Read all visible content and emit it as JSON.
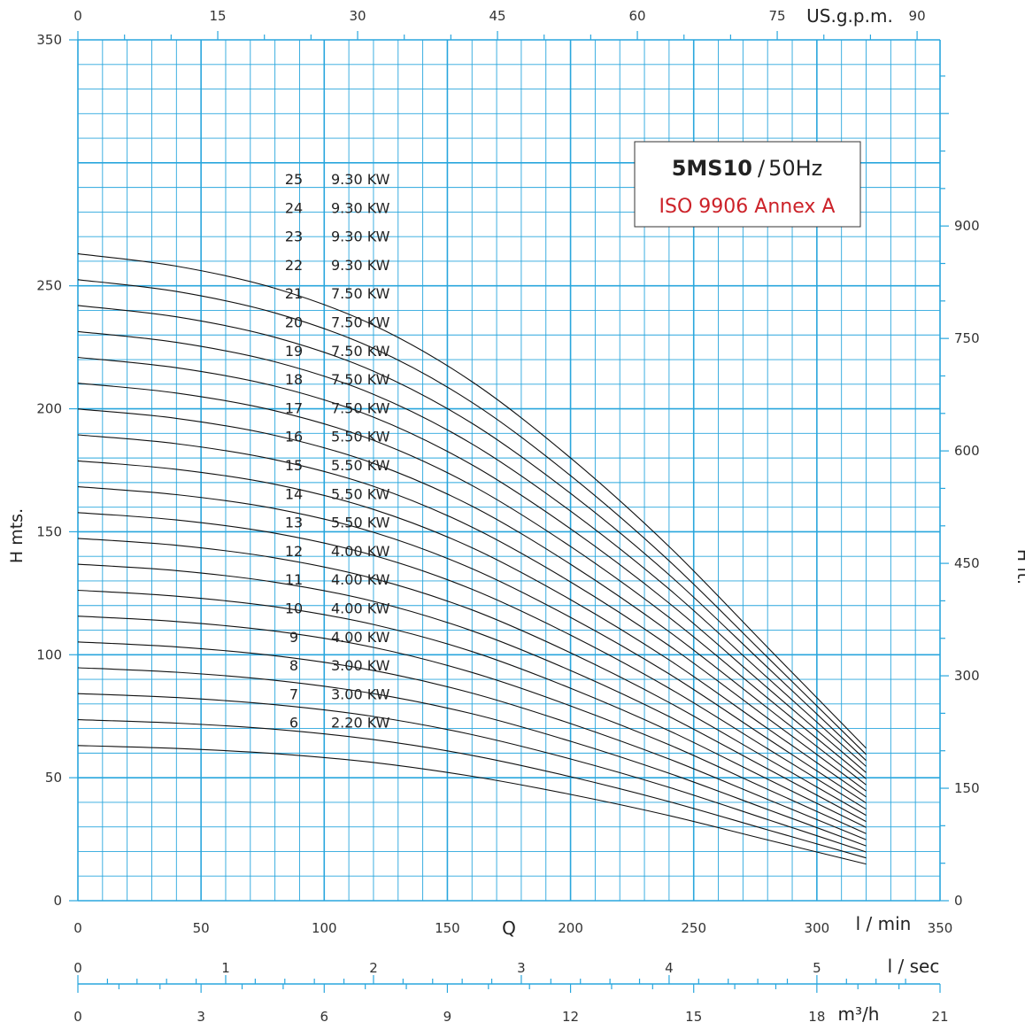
{
  "chart_data": {
    "type": "line",
    "model": "5MS10",
    "frequency": "50Hz",
    "model_separator": "/",
    "standard": "ISO 9906 Annex A",
    "ylabel_left": "H mts.",
    "ylabel_right": "H ft.",
    "xlabel": "Q",
    "axes": {
      "lpm": {
        "unit": "l / min",
        "range": [
          0,
          350
        ],
        "ticks": [
          "0",
          "50",
          "100",
          "150",
          "200",
          "250",
          "300",
          "350"
        ]
      },
      "gpm": {
        "unit": "US.g.p.m.",
        "range": [
          0,
          92.46
        ],
        "ticks": [
          "0",
          "15",
          "30",
          "45",
          "60",
          "75",
          "90"
        ]
      },
      "lps": {
        "unit": "l / sec",
        "range": [
          0,
          5.833
        ],
        "ticks": [
          "0",
          "1",
          "2",
          "3",
          "4",
          "5"
        ]
      },
      "m3h": {
        "unit": "m³/h",
        "range": [
          0,
          21
        ],
        "ticks": [
          "0",
          "3",
          "6",
          "9",
          "12",
          "15",
          "18",
          "21"
        ]
      },
      "head_m": {
        "range": [
          0,
          350
        ],
        "ticks": [
          "0",
          "50",
          "100",
          "150",
          "200",
          "250",
          "350"
        ]
      },
      "head_ft": {
        "range": [
          0,
          1148.3
        ],
        "ticks": [
          "0",
          "150",
          "300",
          "450",
          "600",
          "750",
          "900"
        ]
      }
    },
    "flow_lpm": [
      0,
      40,
      80,
      120,
      160,
      200,
      240,
      280,
      320
    ],
    "series": [
      {
        "stages": "25",
        "power": "9.30 KW",
        "head_m": [
          263,
          258,
          249,
          234,
          211,
          180,
          144,
          103,
          62
        ]
      },
      {
        "stages": "24",
        "power": "9.30 KW",
        "head_m": [
          252.5,
          247.7,
          239,
          224.6,
          202.6,
          172.8,
          138.2,
          98.9,
          59.5
        ]
      },
      {
        "stages": "23",
        "power": "9.30 KW",
        "head_m": [
          242,
          237.4,
          229.1,
          215.3,
          194.1,
          165.6,
          132.5,
          94.8,
          57
        ]
      },
      {
        "stages": "22",
        "power": "9.30 KW",
        "head_m": [
          231.4,
          227,
          219.1,
          205.9,
          185.7,
          158.4,
          126.7,
          90.6,
          54.6
        ]
      },
      {
        "stages": "21",
        "power": "7.50 KW",
        "head_m": [
          220.9,
          216.7,
          209.2,
          196.6,
          177.2,
          151.2,
          121,
          86.5,
          52.1
        ]
      },
      {
        "stages": "20",
        "power": "7.50 KW",
        "head_m": [
          210.4,
          206.4,
          199.2,
          187.2,
          168.8,
          144,
          115.2,
          82.4,
          49.6
        ]
      },
      {
        "stages": "19",
        "power": "7.50 KW",
        "head_m": [
          199.9,
          196.1,
          189.2,
          177.8,
          160.4,
          136.8,
          109.4,
          78.3,
          47.1
        ]
      },
      {
        "stages": "18",
        "power": "7.50 KW",
        "head_m": [
          189.4,
          185.8,
          179.3,
          168.5,
          151.9,
          129.6,
          103.7,
          74.2,
          44.6
        ]
      },
      {
        "stages": "17",
        "power": "7.50 KW",
        "head_m": [
          178.8,
          175.4,
          169.3,
          159.1,
          143.5,
          122.4,
          97.9,
          70,
          42.2
        ]
      },
      {
        "stages": "16",
        "power": "5.50 KW",
        "head_m": [
          168.3,
          165.1,
          159.4,
          149.8,
          135,
          115.2,
          92.2,
          65.9,
          39.7
        ]
      },
      {
        "stages": "15",
        "power": "5.50 KW",
        "head_m": [
          157.8,
          154.8,
          149.4,
          140.4,
          126.6,
          108,
          86.4,
          61.8,
          37.2
        ]
      },
      {
        "stages": "14",
        "power": "5.50 KW",
        "head_m": [
          147.3,
          144.5,
          139.4,
          131,
          118.2,
          100.8,
          80.6,
          57.7,
          34.7
        ]
      },
      {
        "stages": "13",
        "power": "5.50 KW",
        "head_m": [
          136.8,
          134.2,
          129.5,
          121.7,
          109.7,
          93.6,
          74.9,
          53.6,
          32.2
        ]
      },
      {
        "stages": "12",
        "power": "4.00 KW",
        "head_m": [
          126.2,
          123.8,
          119.5,
          112.3,
          101.3,
          86.4,
          69.1,
          49.4,
          29.8
        ]
      },
      {
        "stages": "11",
        "power": "4.00 KW",
        "head_m": [
          115.7,
          113.5,
          109.6,
          103,
          92.8,
          79.2,
          63.4,
          45.3,
          27.3
        ]
      },
      {
        "stages": "10",
        "power": "4.00 KW",
        "head_m": [
          105.2,
          103.2,
          99.6,
          93.6,
          84.4,
          72,
          57.6,
          41.2,
          24.8
        ]
      },
      {
        "stages": "9",
        "power": "4.00 KW",
        "head_m": [
          94.7,
          92.9,
          89.6,
          84.2,
          76,
          64.8,
          51.8,
          37.1,
          22.3
        ]
      },
      {
        "stages": "8",
        "power": "3.00 KW",
        "head_m": [
          84.2,
          82.6,
          79.7,
          74.9,
          67.5,
          57.6,
          46.1,
          33,
          19.8
        ]
      },
      {
        "stages": "7",
        "power": "3.00 KW",
        "head_m": [
          73.6,
          72.2,
          69.7,
          65.5,
          59.1,
          50.4,
          40.3,
          28.8,
          17.4
        ]
      },
      {
        "stages": "6",
        "power": "2.20 KW",
        "head_m": [
          63.1,
          61.9,
          59.8,
          56.2,
          50.6,
          43.2,
          34.6,
          24.7,
          14.9
        ]
      }
    ]
  }
}
